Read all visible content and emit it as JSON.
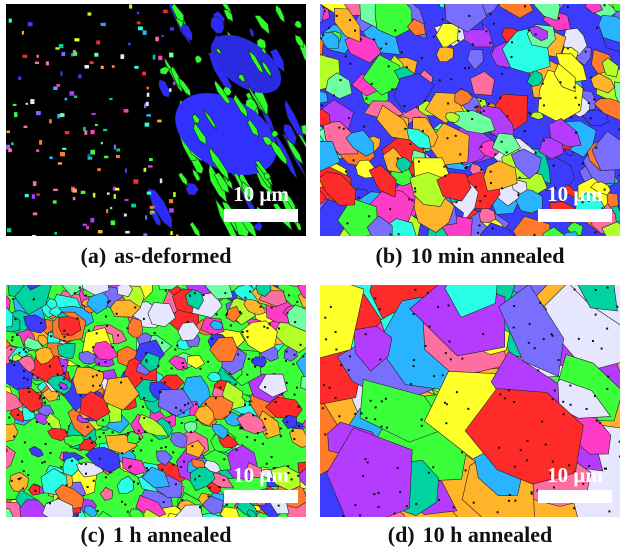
{
  "panels": [
    {
      "label": "(a)",
      "caption": "as-deformed",
      "scale_bar": "10 μm"
    },
    {
      "label": "(b)",
      "caption": "10 min annealed",
      "scale_bar": "10 μm"
    },
    {
      "label": "(c)",
      "caption": "1 h annealed",
      "scale_bar": "10 μm"
    },
    {
      "label": "(d)",
      "caption": "10 h annealed",
      "scale_bar": "10 μm"
    }
  ]
}
